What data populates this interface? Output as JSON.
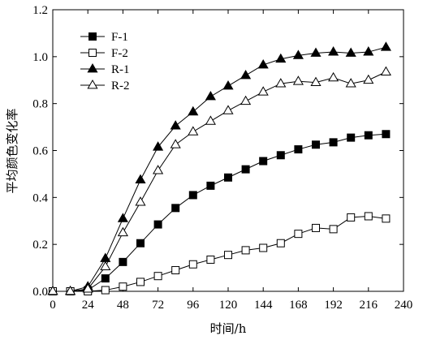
{
  "chart_data": {
    "type": "line",
    "xlabel": "时间/h",
    "ylabel": "平均颜色变化率",
    "xlim": [
      0,
      240
    ],
    "ylim": [
      0,
      1.2
    ],
    "xticks": [
      0,
      24,
      48,
      72,
      96,
      120,
      144,
      168,
      192,
      216,
      240
    ],
    "yticks": [
      0.0,
      0.2,
      0.4,
      0.6,
      0.8,
      1.0,
      1.2
    ],
    "xtick_labels": [
      "0",
      "24",
      "48",
      "72",
      "96",
      "120",
      "144",
      "168",
      "192",
      "216",
      "240"
    ],
    "ytick_labels": [
      "0.0",
      "0.2",
      "0.4",
      "0.6",
      "0.8",
      "1.0",
      "1.2"
    ],
    "grid": false,
    "legend_position": "top-left",
    "x": [
      0,
      12,
      24,
      36,
      48,
      60,
      72,
      84,
      96,
      108,
      120,
      132,
      144,
      156,
      168,
      180,
      192,
      204,
      216,
      228
    ],
    "series": [
      {
        "name": "F-1",
        "marker": "filled-square",
        "color": "#000000",
        "values": [
          0,
          0,
          0.005,
          0.055,
          0.125,
          0.205,
          0.285,
          0.355,
          0.41,
          0.45,
          0.485,
          0.52,
          0.555,
          0.58,
          0.605,
          0.625,
          0.635,
          0.655,
          0.665,
          0.67
        ]
      },
      {
        "name": "F-2",
        "marker": "open-square",
        "color": "#000000",
        "values": [
          0,
          0,
          0,
          0.005,
          0.02,
          0.04,
          0.065,
          0.09,
          0.115,
          0.135,
          0.155,
          0.175,
          0.185,
          0.205,
          0.245,
          0.27,
          0.265,
          0.315,
          0.32,
          0.31
        ]
      },
      {
        "name": "R-1",
        "marker": "filled-triangle",
        "color": "#000000",
        "values": [
          0,
          0,
          0.02,
          0.14,
          0.31,
          0.475,
          0.615,
          0.705,
          0.765,
          0.83,
          0.875,
          0.92,
          0.965,
          0.99,
          1.005,
          1.015,
          1.02,
          1.015,
          1.02,
          1.04
        ]
      },
      {
        "name": "R-2",
        "marker": "open-triangle",
        "color": "#000000",
        "values": [
          0,
          0,
          0.01,
          0.105,
          0.25,
          0.38,
          0.515,
          0.625,
          0.68,
          0.725,
          0.77,
          0.81,
          0.85,
          0.885,
          0.895,
          0.89,
          0.91,
          0.885,
          0.9,
          0.935
        ]
      }
    ]
  }
}
